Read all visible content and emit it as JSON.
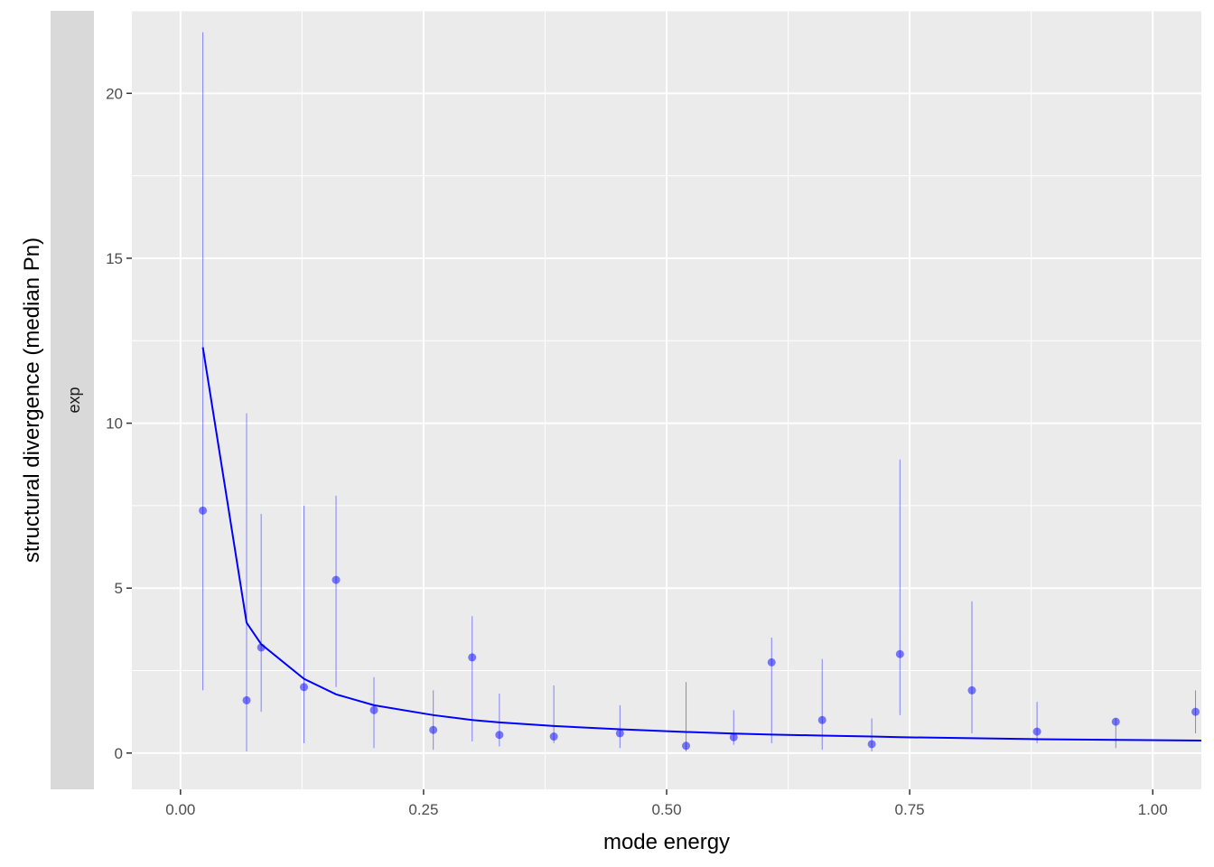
{
  "chart_data": {
    "type": "scatter",
    "xlabel": "mode energy",
    "ylabel": "structural divergence (median Pn)",
    "facet_label": "exp",
    "xlim": [
      -0.05,
      1.05
    ],
    "ylim": [
      -1.1,
      22.5
    ],
    "x_ticks": [
      0,
      0.25,
      0.5,
      0.75,
      1.0
    ],
    "x_tick_labels": [
      "0.00",
      "0.25",
      "0.50",
      "0.75",
      "1.00"
    ],
    "y_ticks": [
      0,
      5,
      10,
      15,
      20
    ],
    "y_tick_labels": [
      "0",
      "5",
      "10",
      "15",
      "20"
    ],
    "grid": true,
    "colors": {
      "panel_bg": "#ebebeb",
      "strip_bg": "#d9d9d9",
      "grid": "#ffffff",
      "points": "#0000ff",
      "fit_line": "#0000ff"
    },
    "series": [
      {
        "type": "pointrange",
        "x": [
          0.023,
          0.068,
          0.083,
          0.127,
          0.16,
          0.199,
          0.26,
          0.3,
          0.328,
          0.384,
          0.452,
          0.52,
          0.569,
          0.608,
          0.66,
          0.711,
          0.74,
          0.814,
          0.881,
          0.962,
          1.044
        ],
        "y": [
          7.35,
          1.6,
          3.2,
          2.0,
          5.25,
          1.3,
          0.7,
          2.9,
          0.55,
          0.5,
          0.6,
          0.22,
          0.48,
          2.75,
          1.0,
          0.27,
          3.0,
          1.9,
          0.65,
          0.95,
          1.25
        ],
        "ymin": [
          1.9,
          0.05,
          1.25,
          0.3,
          2.0,
          0.15,
          0.1,
          0.35,
          0.2,
          0.3,
          0.15,
          0.05,
          0.25,
          0.3,
          0.1,
          0.05,
          1.15,
          0.6,
          0.3,
          0.15,
          0.6
        ],
        "ymax": [
          21.85,
          10.3,
          7.25,
          7.5,
          7.8,
          2.3,
          1.9,
          4.15,
          1.8,
          2.05,
          1.45,
          2.15,
          1.3,
          3.5,
          2.85,
          1.05,
          8.9,
          4.6,
          1.55,
          1.05,
          1.9
        ]
      },
      {
        "type": "line",
        "x": [
          0.023,
          0.068,
          0.083,
          0.127,
          0.16,
          0.199,
          0.26,
          0.3,
          0.328,
          0.384,
          0.452,
          0.52,
          0.569,
          0.608,
          0.66,
          0.711,
          0.74,
          0.814,
          0.881,
          0.962,
          1.05
        ],
        "y": [
          12.3,
          3.95,
          3.3,
          2.25,
          1.78,
          1.45,
          1.15,
          1.0,
          0.93,
          0.82,
          0.72,
          0.64,
          0.59,
          0.56,
          0.53,
          0.5,
          0.48,
          0.45,
          0.42,
          0.4,
          0.38
        ]
      }
    ]
  }
}
